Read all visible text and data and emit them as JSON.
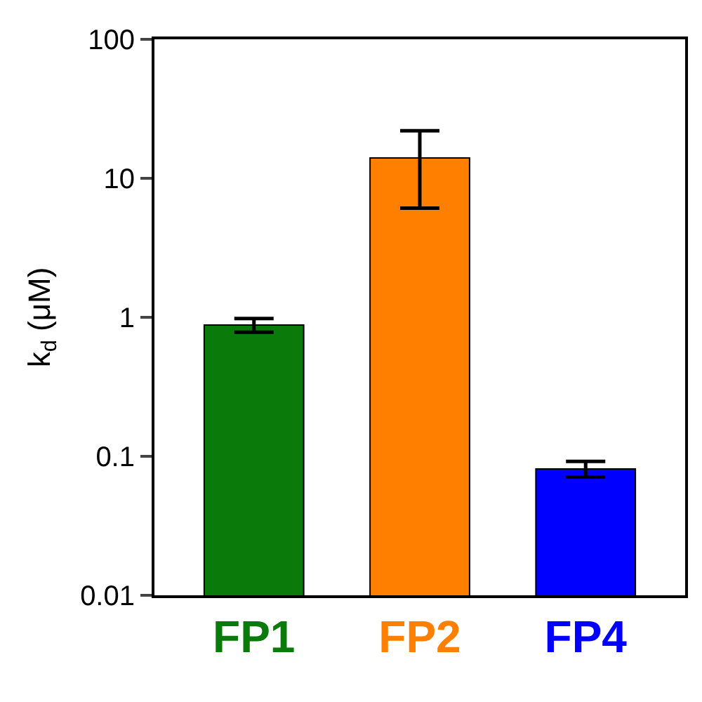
{
  "chart_data": {
    "type": "bar",
    "ylabel": "k$_{d}$ (μM)",
    "categories": [
      "FP1",
      "FP2",
      "FP4"
    ],
    "values": [
      0.88,
      14,
      0.081
    ],
    "colors": [
      "#0a7a0a",
      "#ff8000",
      "#0000ff"
    ],
    "errors": [
      [
        0.78,
        0.98
      ],
      [
        6.1,
        22
      ],
      [
        0.071,
        0.092
      ]
    ],
    "log": "y",
    "ylim": [
      0.01,
      100
    ],
    "yticks": [
      0.01,
      0.1,
      1,
      10,
      100
    ],
    "tick_labels": true
  }
}
